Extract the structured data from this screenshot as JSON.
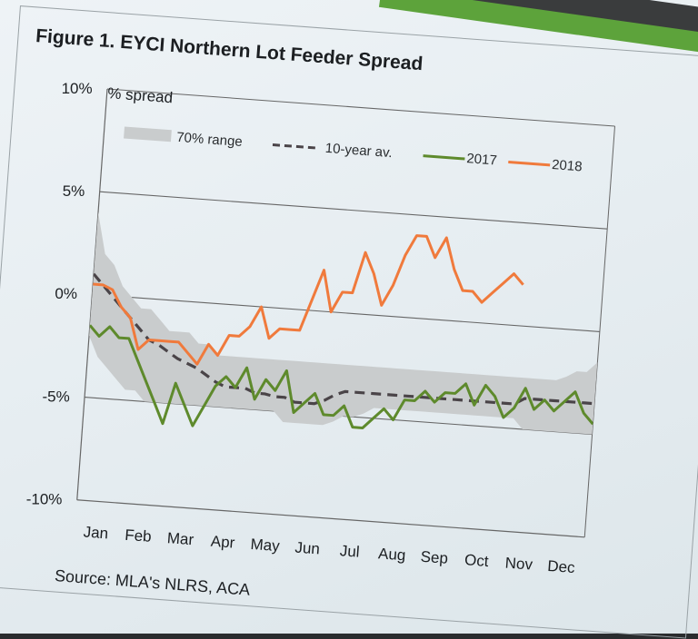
{
  "chart_data": {
    "type": "line",
    "title": "Figure 1. EYCI Northern Lot Feeder Spread",
    "ylabel": "% spread",
    "source": "Source: MLA's NLRS, ACA",
    "ylim": [
      -10,
      10
    ],
    "y_ticks": [
      {
        "value": 10,
        "label": "10%"
      },
      {
        "value": 5,
        "label": "5%"
      },
      {
        "value": 0,
        "label": "0%"
      },
      {
        "value": -5,
        "label": "-5%"
      },
      {
        "value": -10,
        "label": "-10%"
      }
    ],
    "x_categories": [
      "Jan",
      "Feb",
      "Mar",
      "Apr",
      "May",
      "Jun",
      "Jul",
      "Aug",
      "Sep",
      "Oct",
      "Nov",
      "Dec"
    ],
    "legend": {
      "range_label": "70% range",
      "avg_label": "10-year av.",
      "series_2017_label": "2017",
      "series_2018_label": "2018"
    },
    "range_upper": [
      4,
      2,
      1.5,
      0.5,
      0,
      -0.5,
      -0.5,
      -1,
      -1.5,
      -1.5,
      -1.5,
      -2,
      -2,
      -2.5,
      -2.5,
      -2.5,
      -2.5,
      -2.5,
      -2.5,
      -2.5,
      -2.5,
      -2.5,
      -2.5,
      -2.5,
      -2.5,
      -2.5,
      -2.5,
      -2.5,
      -2.5,
      -2.5,
      -2.5,
      -2.5,
      -2.5,
      -2.5,
      -2.5,
      -2.5,
      -2.5,
      -2.5,
      -2.5,
      -2.5,
      -2.5,
      -2.5,
      -2.5,
      -2.5,
      -2.5,
      -2.5,
      -2.5,
      -2.5,
      -2.3,
      -2,
      -2,
      -1.5
    ],
    "range_lower": [
      -2,
      -3,
      -3.5,
      -4,
      -4.5,
      -4.5,
      -5,
      -5,
      -5,
      -5,
      -5,
      -5,
      -5,
      -5,
      -5,
      -5,
      -5,
      -5,
      -5,
      -5,
      -5.5,
      -5.5,
      -5.5,
      -5.5,
      -5.5,
      -5.3,
      -5,
      -5,
      -4.8,
      -4.5,
      -4.5,
      -4.5,
      -4.5,
      -4.5,
      -4.5,
      -4.5,
      -4.5,
      -4.5,
      -4.5,
      -4.5,
      -4.5,
      -4.5,
      -4.5,
      -4.5,
      -5,
      -5,
      -5,
      -5,
      -5,
      -5,
      -5,
      -5
    ],
    "avg": [
      1,
      0.5,
      0,
      -0.5,
      -1,
      -1.5,
      -2,
      -2.2,
      -2.5,
      -2.8,
      -3,
      -3.2,
      -3.5,
      -3.8,
      -4,
      -4,
      -4,
      -4.2,
      -4.2,
      -4.3,
      -4.3,
      -4.5,
      -4.5,
      -4.5,
      -4.3,
      -4,
      -3.8,
      -3.8,
      -3.8,
      -3.8,
      -3.8,
      -3.8,
      -3.8,
      -3.8,
      -3.8,
      -3.8,
      -3.8,
      -3.8,
      -3.8,
      -3.8,
      -3.8,
      -3.8,
      -3.8,
      -3.8,
      -3.5,
      -3.5,
      -3.5,
      -3.5,
      -3.5,
      -3.5,
      -3.5,
      -3.5
    ],
    "series_2017": [
      -1.5,
      -2,
      -1.5,
      -2,
      -2,
      -3,
      -4,
      -5,
      -6,
      -4,
      -5,
      -6,
      -5,
      -4,
      -3.5,
      -4,
      -3,
      -4.5,
      -3.5,
      -4,
      -3,
      -5,
      -4.5,
      -4,
      -5,
      -5,
      -4.5,
      -5.5,
      -5.5,
      -5,
      -4.5,
      -5,
      -4,
      -4,
      -3.5,
      -4,
      -3.5,
      -3.5,
      -3,
      -4,
      -3,
      -3.5,
      -4.5,
      -4,
      -3,
      -4,
      -3.5,
      -4,
      -3.5,
      -3,
      -4,
      -4.5
    ],
    "series_2018": [
      0.5,
      0.5,
      0.3,
      -0.5,
      -1,
      -2.5,
      -2,
      -2,
      -2,
      -2,
      -2.5,
      -3,
      -2,
      -2.5,
      -1.5,
      -1.5,
      -1,
      0,
      -1.5,
      -1,
      -1,
      -1,
      0.5,
      2,
      0,
      1,
      1,
      3,
      2,
      0.5,
      1.5,
      3,
      4,
      4,
      3,
      4,
      2.5,
      1.5,
      1.5,
      1,
      1.5,
      2,
      2.5,
      2
    ]
  }
}
